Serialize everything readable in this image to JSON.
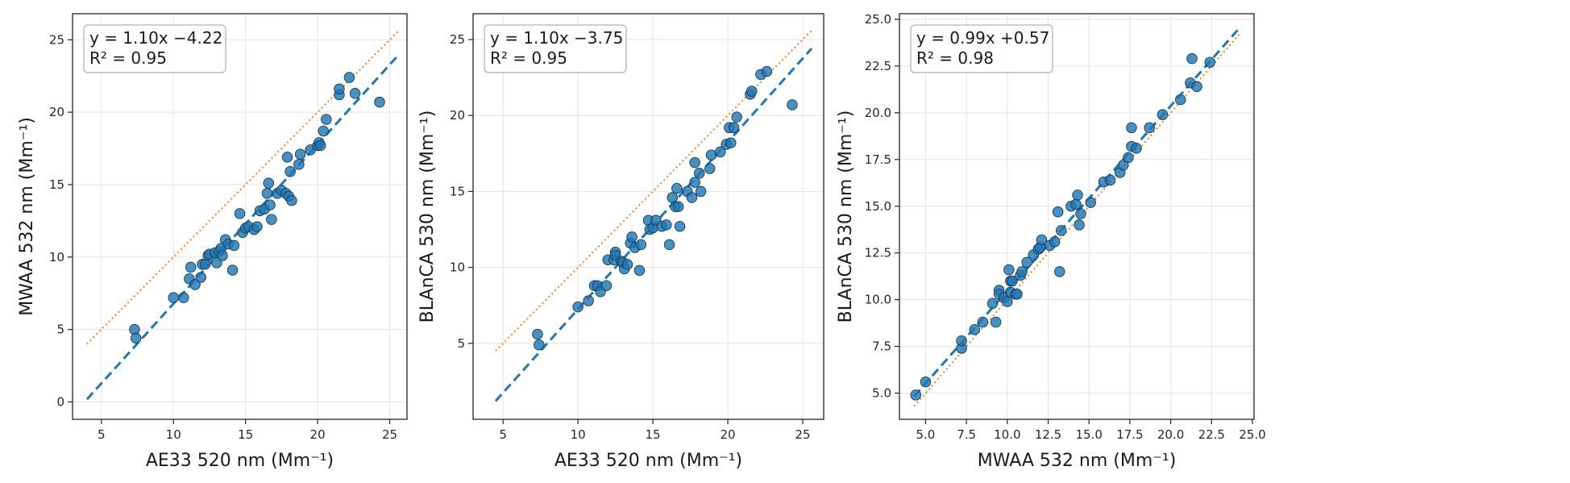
{
  "chart_data": [
    {
      "type": "scatter",
      "xlabel": "AE33 520 nm (Mm⁻¹)",
      "ylabel": "MWAA 532 nm (Mm⁻¹)",
      "xlim": [
        3,
        26.2
      ],
      "ylim": [
        -1.2,
        26.8
      ],
      "xticks": [
        5,
        10,
        15,
        20,
        25
      ],
      "yticks": [
        0,
        5,
        10,
        15,
        20,
        25
      ],
      "tick_decimals": 0,
      "grid": true,
      "equation": "y = 1.10x −4.22",
      "r2": "R² = 0.95",
      "fit": {
        "slope": 1.1,
        "intercept": -4.22,
        "x_range": [
          4,
          25.6
        ]
      },
      "one_to_one": {
        "x_range": [
          4,
          25.6
        ]
      },
      "colors": {
        "points": "#1f77b4",
        "fit": "#1f77b4",
        "one_to_one": "#ff7f0e"
      },
      "points": [
        [
          7.3,
          5.0
        ],
        [
          7.4,
          4.4
        ],
        [
          10.0,
          7.2
        ],
        [
          10.7,
          7.2
        ],
        [
          11.1,
          8.5
        ],
        [
          11.2,
          9.3
        ],
        [
          11.5,
          8.1
        ],
        [
          11.9,
          8.6
        ],
        [
          12.0,
          9.5
        ],
        [
          12.2,
          9.5
        ],
        [
          12.4,
          10.1
        ],
        [
          12.5,
          10.2
        ],
        [
          12.9,
          10.3
        ],
        [
          13.0,
          9.6
        ],
        [
          13.2,
          10.4
        ],
        [
          13.3,
          10.6
        ],
        [
          13.4,
          10.1
        ],
        [
          13.6,
          11.2
        ],
        [
          13.8,
          10.9
        ],
        [
          14.1,
          9.1
        ],
        [
          14.2,
          10.8
        ],
        [
          14.6,
          13.0
        ],
        [
          14.8,
          11.7
        ],
        [
          15.0,
          12.0
        ],
        [
          15.2,
          12.1
        ],
        [
          15.6,
          11.9
        ],
        [
          15.8,
          12.1
        ],
        [
          16.0,
          13.2
        ],
        [
          16.3,
          13.3
        ],
        [
          16.5,
          14.4
        ],
        [
          16.6,
          15.1
        ],
        [
          16.7,
          13.6
        ],
        [
          16.8,
          12.6
        ],
        [
          17.2,
          14.4
        ],
        [
          17.5,
          14.6
        ],
        [
          17.8,
          14.4
        ],
        [
          17.9,
          16.9
        ],
        [
          18.0,
          14.2
        ],
        [
          18.1,
          15.9
        ],
        [
          18.2,
          13.9
        ],
        [
          18.7,
          16.4
        ],
        [
          18.8,
          17.1
        ],
        [
          19.5,
          17.4
        ],
        [
          20.0,
          17.7
        ],
        [
          20.1,
          17.9
        ],
        [
          20.2,
          17.7
        ],
        [
          20.4,
          18.7
        ],
        [
          20.6,
          19.5
        ],
        [
          21.5,
          21.2
        ],
        [
          21.5,
          21.6
        ],
        [
          22.2,
          22.4
        ],
        [
          22.6,
          21.3
        ],
        [
          24.3,
          20.7
        ]
      ]
    },
    {
      "type": "scatter",
      "xlabel": "AE33 520 nm (Mm⁻¹)",
      "ylabel": "BLAnCA 530 nm (Mm⁻¹)",
      "xlim": [
        3.0,
        26.4
      ],
      "ylim": [
        0.0,
        26.7
      ],
      "xticks": [
        5,
        10,
        15,
        20,
        25
      ],
      "yticks": [
        5,
        10,
        15,
        20,
        25
      ],
      "tick_decimals": 0,
      "grid": true,
      "equation": "y = 1.10x −3.75",
      "r2": "R² = 0.95",
      "fit": {
        "slope": 1.1,
        "intercept": -3.75,
        "x_range": [
          4.5,
          25.6
        ]
      },
      "one_to_one": {
        "x_range": [
          4.5,
          25.6
        ]
      },
      "colors": {
        "points": "#1f77b4",
        "fit": "#1f77b4",
        "one_to_one": "#ff7f0e"
      },
      "points": [
        [
          7.3,
          5.6
        ],
        [
          7.4,
          4.9
        ],
        [
          10.0,
          7.4
        ],
        [
          10.7,
          7.8
        ],
        [
          11.1,
          8.8
        ],
        [
          11.3,
          8.8
        ],
        [
          11.5,
          8.4
        ],
        [
          11.9,
          8.8
        ],
        [
          12.0,
          10.5
        ],
        [
          12.4,
          10.5
        ],
        [
          12.5,
          11.0
        ],
        [
          12.5,
          10.8
        ],
        [
          12.9,
          10.4
        ],
        [
          13.0,
          10.3
        ],
        [
          13.1,
          9.9
        ],
        [
          13.3,
          10.2
        ],
        [
          13.5,
          11.6
        ],
        [
          13.6,
          12.0
        ],
        [
          13.8,
          11.3
        ],
        [
          14.1,
          9.8
        ],
        [
          14.2,
          11.5
        ],
        [
          14.7,
          13.1
        ],
        [
          14.8,
          12.5
        ],
        [
          15.0,
          12.6
        ],
        [
          15.2,
          13.1
        ],
        [
          15.6,
          12.7
        ],
        [
          15.9,
          12.8
        ],
        [
          16.1,
          11.5
        ],
        [
          16.3,
          14.6
        ],
        [
          16.5,
          14.0
        ],
        [
          16.6,
          15.2
        ],
        [
          16.7,
          14.0
        ],
        [
          16.8,
          12.7
        ],
        [
          17.3,
          15.0
        ],
        [
          17.6,
          14.6
        ],
        [
          17.8,
          15.6
        ],
        [
          17.8,
          16.9
        ],
        [
          18.1,
          16.2
        ],
        [
          18.2,
          15.0
        ],
        [
          18.8,
          16.5
        ],
        [
          18.9,
          17.4
        ],
        [
          19.5,
          17.6
        ],
        [
          19.9,
          18.1
        ],
        [
          20.1,
          19.2
        ],
        [
          20.2,
          18.2
        ],
        [
          20.4,
          19.2
        ],
        [
          20.6,
          19.9
        ],
        [
          21.5,
          21.4
        ],
        [
          21.6,
          21.6
        ],
        [
          22.2,
          22.7
        ],
        [
          22.6,
          22.9
        ],
        [
          24.3,
          20.7
        ]
      ]
    },
    {
      "type": "scatter",
      "xlabel": "MWAA 532 nm (Mm⁻¹)",
      "ylabel": "BLAnCA 530 nm (Mm⁻¹)",
      "xlim": [
        3.4,
        25.1
      ],
      "ylim": [
        3.6,
        25.3
      ],
      "xticks": [
        5.0,
        7.5,
        10.0,
        12.5,
        15.0,
        17.5,
        20.0,
        22.5,
        25.0
      ],
      "yticks": [
        5.0,
        7.5,
        10.0,
        12.5,
        15.0,
        17.5,
        20.0,
        22.5,
        25.0
      ],
      "tick_decimals": 1,
      "grid": true,
      "equation": "y = 0.99x +0.57",
      "r2": "R² = 0.98",
      "fit": {
        "slope": 0.99,
        "intercept": 0.57,
        "x_range": [
          4.3,
          24.2
        ]
      },
      "one_to_one": {
        "x_range": [
          4.3,
          24.2
        ]
      },
      "colors": {
        "points": "#1f77b4",
        "fit": "#1f77b4",
        "one_to_one": "#ff7f0e"
      },
      "points": [
        [
          4.4,
          4.9
        ],
        [
          5.0,
          5.6
        ],
        [
          7.2,
          7.4
        ],
        [
          7.2,
          7.8
        ],
        [
          8.0,
          8.4
        ],
        [
          8.5,
          8.8
        ],
        [
          9.1,
          9.8
        ],
        [
          9.3,
          8.8
        ],
        [
          9.5,
          10.5
        ],
        [
          9.5,
          10.3
        ],
        [
          9.8,
          10.1
        ],
        [
          10.0,
          9.9
        ],
        [
          10.1,
          11.6
        ],
        [
          10.2,
          10.4
        ],
        [
          10.2,
          11.0
        ],
        [
          10.3,
          11.0
        ],
        [
          10.5,
          10.3
        ],
        [
          10.6,
          10.3
        ],
        [
          10.8,
          11.3
        ],
        [
          10.9,
          11.5
        ],
        [
          11.2,
          12.0
        ],
        [
          11.6,
          12.4
        ],
        [
          11.9,
          12.7
        ],
        [
          12.0,
          12.8
        ],
        [
          12.1,
          13.2
        ],
        [
          12.6,
          12.9
        ],
        [
          12.9,
          13.1
        ],
        [
          13.1,
          14.7
        ],
        [
          13.2,
          11.5
        ],
        [
          13.3,
          13.7
        ],
        [
          13.9,
          15.0
        ],
        [
          14.2,
          15.1
        ],
        [
          14.3,
          15.6
        ],
        [
          14.4,
          14.0
        ],
        [
          14.5,
          14.6
        ],
        [
          15.1,
          15.2
        ],
        [
          15.9,
          16.3
        ],
        [
          16.3,
          16.4
        ],
        [
          16.9,
          16.8
        ],
        [
          17.1,
          17.2
        ],
        [
          17.4,
          17.6
        ],
        [
          17.6,
          18.2
        ],
        [
          17.6,
          19.2
        ],
        [
          17.9,
          18.1
        ],
        [
          18.7,
          19.2
        ],
        [
          19.5,
          19.9
        ],
        [
          20.6,
          20.7
        ],
        [
          21.2,
          21.6
        ],
        [
          21.3,
          22.9
        ],
        [
          21.6,
          21.4
        ],
        [
          22.4,
          22.7
        ]
      ]
    }
  ]
}
